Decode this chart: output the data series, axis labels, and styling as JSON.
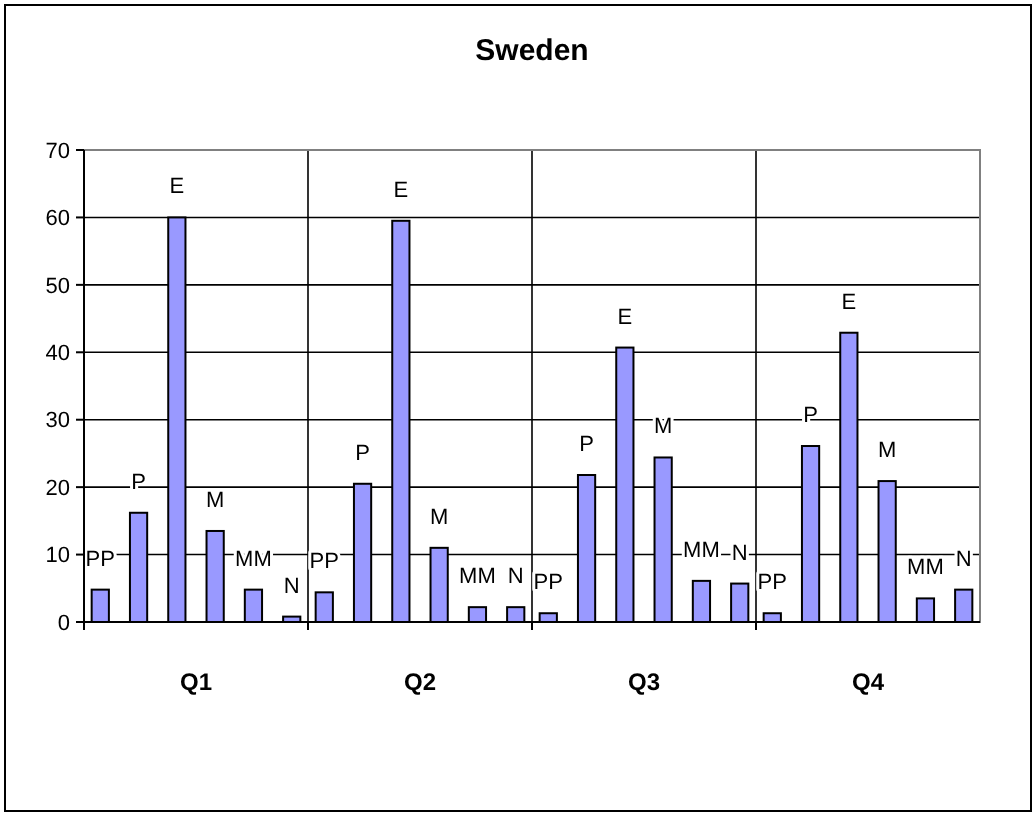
{
  "chart_data": {
    "type": "bar",
    "title": "Sweden",
    "categories": [
      "Q1",
      "Q2",
      "Q3",
      "Q4"
    ],
    "series": [
      {
        "name": "PP",
        "color": "#9999ff",
        "values": [
          4.8,
          4.4,
          1.3,
          1.3
        ]
      },
      {
        "name": "P",
        "color": "#9999ff",
        "values": [
          16.2,
          20.5,
          21.8,
          26.1
        ]
      },
      {
        "name": "E",
        "color": "#9999ff",
        "values": [
          60,
          59.5,
          40.7,
          42.9
        ]
      },
      {
        "name": "M",
        "color": "#9999ff",
        "values": [
          13.5,
          11,
          24.4,
          20.9
        ]
      },
      {
        "name": "MM",
        "color": "#9999ff",
        "values": [
          4.8,
          2.2,
          6.1,
          3.5
        ]
      },
      {
        "name": "N",
        "color": "#9999ff",
        "values": [
          0.8,
          2.2,
          5.7,
          4.8
        ]
      }
    ],
    "ylim": [
      0,
      70
    ],
    "yticks": [
      0,
      10,
      20,
      30,
      40,
      50,
      60,
      70
    ],
    "grid": true
  }
}
